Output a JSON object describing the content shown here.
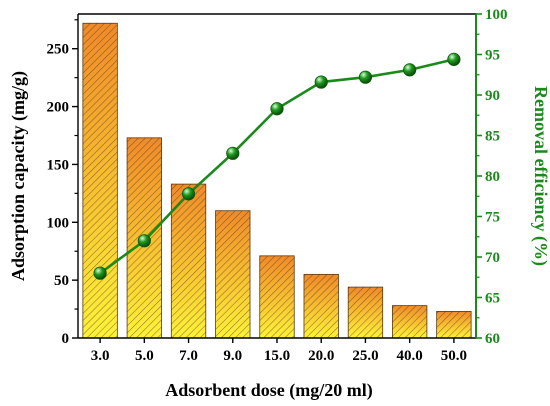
{
  "chart_data": {
    "type": "bar",
    "title": "",
    "xlabel": "Adsorbent dose (mg/20 ml)",
    "ylabel_left": "Adsorption capacity (mg/g)",
    "ylabel_right": "Removal efficiency (%)",
    "categories": [
      "3.0",
      "5.0",
      "7.0",
      "9.0",
      "15.0",
      "20.0",
      "25.0",
      "40.0",
      "50.0"
    ],
    "ylim_left": [
      0,
      280
    ],
    "yticks_left": [
      0,
      50,
      100,
      150,
      200,
      250
    ],
    "ylim_right": [
      60,
      100
    ],
    "yticks_right": [
      60,
      65,
      70,
      75,
      80,
      85,
      90,
      95,
      100
    ],
    "series": [
      {
        "kind": "bar",
        "axis": "left",
        "values": [
          272,
          173,
          133,
          110,
          71,
          55,
          44,
          28,
          23
        ]
      },
      {
        "kind": "line",
        "axis": "right",
        "values": [
          68.0,
          72.0,
          77.8,
          82.8,
          88.3,
          91.6,
          92.2,
          93.1,
          94.4
        ]
      }
    ],
    "grid": false,
    "colors": {
      "bar_top": "#f08a2a",
      "bar_bottom": "#fff23a",
      "bar_hatch": "#3a2a10",
      "line": "#1a8a1a",
      "marker": "#1f9a1f",
      "left_axis": "#000000",
      "right_axis": "#1a8a1a"
    }
  }
}
